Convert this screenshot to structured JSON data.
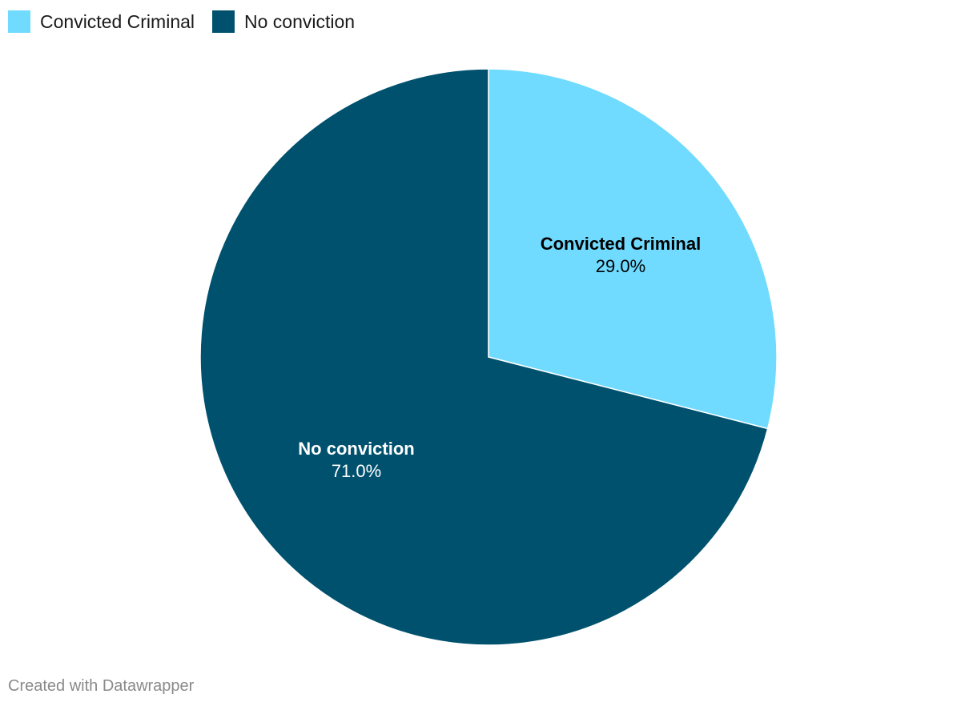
{
  "chart_data": {
    "type": "pie",
    "title": "",
    "slices": [
      {
        "name": "Convicted Criminal",
        "value": 29.0,
        "label": "29.0%",
        "color": "#70dbff",
        "label_color": "#000000"
      },
      {
        "name": "No conviction",
        "value": 71.0,
        "label": "71.0%",
        "color": "#00516e",
        "label_color": "#ffffff"
      }
    ],
    "legend": {
      "position": "top-left"
    },
    "start_angle_deg": 0,
    "direction": "clockwise"
  },
  "legend_items": [
    {
      "label": "Convicted Criminal",
      "color": "#70dbff"
    },
    {
      "label": "No conviction",
      "color": "#00516e"
    }
  ],
  "footer": {
    "credit": "Created with Datawrapper"
  }
}
